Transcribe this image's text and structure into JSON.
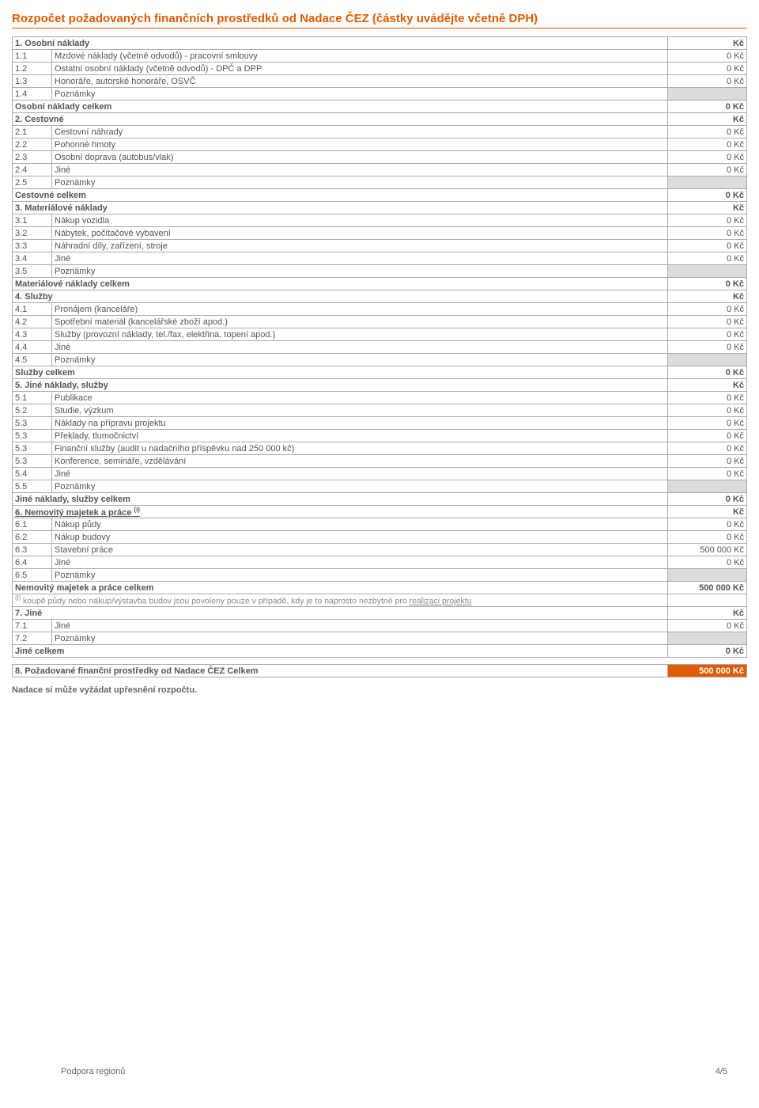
{
  "title": "Rozpočet požadovaných finančních prostředků od Nadace ČEZ (částky uvádějte včetně DPH)",
  "currency_label": "Kč",
  "zero": "0 Kč",
  "sections": [
    {
      "header": "1. Osobní náklady",
      "rows": [
        {
          "num": "1.1",
          "desc": "Mzdové náklady (včetně odvodů) - pracovní smlouvy",
          "amount": "0 Kč"
        },
        {
          "num": "1.2",
          "desc": "Ostatní osobní náklady (včetně odvodů) - DPČ a DPP",
          "amount": "0 Kč"
        },
        {
          "num": "1.3",
          "desc": "Honoráře, autorské honoráře, OSVČ",
          "amount": "0 Kč"
        },
        {
          "num": "1.4",
          "desc": "Poznámky",
          "notes": true
        }
      ],
      "total_label": "Osobní náklady celkem",
      "total": "0 Kč"
    },
    {
      "header": "2. Cestovné",
      "rows": [
        {
          "num": "2.1",
          "desc": "Cestovní náhrady",
          "amount": "0 Kč"
        },
        {
          "num": "2.2",
          "desc": "Pohonné hmoty",
          "amount": "0 Kč"
        },
        {
          "num": "2.3",
          "desc": "Osobní doprava (autobus/vlak)",
          "amount": "0 Kč"
        },
        {
          "num": "2.4",
          "desc": "Jiné",
          "amount": "0 Kč"
        },
        {
          "num": "2.5",
          "desc": "Poznámky",
          "notes": true
        }
      ],
      "total_label": "Cestovné  celkem",
      "total": "0 Kč"
    },
    {
      "header": "3. Materiálové náklady",
      "rows": [
        {
          "num": "3.1",
          "desc": "Nákup vozidla",
          "amount": "0 Kč"
        },
        {
          "num": "3.2",
          "desc": "Nábytek, počítačové vybavení",
          "amount": "0 Kč"
        },
        {
          "num": "3.3",
          "desc": "Náhradní díly, zařízení, stroje",
          "amount": "0 Kč"
        },
        {
          "num": "3.4",
          "desc": "Jiné",
          "amount": "0 Kč"
        },
        {
          "num": "3.5",
          "desc": "Poznámky",
          "notes": true
        }
      ],
      "total_label": "Materiálové náklady celkem",
      "total": "0 Kč"
    },
    {
      "header": "4. Služby",
      "rows": [
        {
          "num": "4.1",
          "desc": "Pronájem (kanceláře)",
          "amount": "0 Kč"
        },
        {
          "num": "4.2",
          "desc": "Spotřební materiál (kancelářské zboží apod.)",
          "amount": "0 Kč"
        },
        {
          "num": "4.3",
          "desc": "Služby (provozní náklady, tel./fax, elektřina, topení apod.)",
          "amount": "0 Kč"
        },
        {
          "num": "4.4",
          "desc": "Jiné",
          "amount": "0 Kč"
        },
        {
          "num": "4.5",
          "desc": "Poznámky",
          "notes": true
        }
      ],
      "total_label": "Služby celkem",
      "total": "0 Kč"
    },
    {
      "header": "5. Jiné náklady, služby",
      "rows": [
        {
          "num": "5.1",
          "desc": "Publikace",
          "amount": "0 Kč"
        },
        {
          "num": "5.2",
          "desc": "Studie, výzkum",
          "amount": "0 Kč"
        },
        {
          "num": "5.3",
          "desc": "Náklady na přípravu projektu",
          "amount": "0 Kč"
        },
        {
          "num": "5.3",
          "desc": "Překlady, tlumočnictví",
          "amount": "0 Kč"
        },
        {
          "num": "5.3",
          "desc": "Finanční služby (audit u nadačního příspěvku nad 250 000 kč)",
          "amount": "0 Kč"
        },
        {
          "num": "5.3",
          "desc": "Konference, semináře, vzdělávání",
          "amount": "0 Kč"
        },
        {
          "num": "5.4",
          "desc": "Jiné",
          "amount": "0 Kč"
        },
        {
          "num": "5.5",
          "desc": "Poznámky",
          "notes": true
        }
      ],
      "total_label": "Jiné náklady, služby celkem",
      "total": "0 Kč"
    },
    {
      "header_html": "6. Nemovitý majetek a práce <sup>(i)</sup>",
      "header_underline": true,
      "rows": [
        {
          "num": "6.1",
          "desc": "Nákup půdy",
          "amount": "0 Kč"
        },
        {
          "num": "6.2",
          "desc": "Nákup budovy",
          "amount": "0 Kč"
        },
        {
          "num": "6.3",
          "desc": "Stavební práce",
          "amount": "500 000 Kč"
        },
        {
          "num": "6.4",
          "desc": "Jiné",
          "amount": "0 Kč"
        },
        {
          "num": "6.5",
          "desc": "Poznámky",
          "notes": true
        }
      ],
      "total_label": "Nemovitý majetek a práce celkem",
      "total": "500 000 Kč",
      "footnote_html": "<sup>(i)</sup> koupě půdy nebo nákup/výstavba budov jsou povoleny pouze v případě, kdy je to naprosto nezbytné pro <span class='underline'>realizaci projektu</span>"
    },
    {
      "header": "7. Jiné",
      "rows": [
        {
          "num": "7.1",
          "desc": "Jiné",
          "amount": "0 Kč"
        },
        {
          "num": "7.2",
          "desc": "Poznámky",
          "notes": true
        }
      ],
      "total_label": "Jiné  celkem",
      "total": "0 Kč"
    }
  ],
  "grand_total_label": "8. Požadované finanční prostředky od Nadace ČEZ Celkem",
  "grand_total": "500 000 Kč",
  "bottom_note": "Nadace si může vyžádat upřesnění rozpočtu.",
  "footer_left": "Podpora regionů",
  "footer_right": "4/5"
}
